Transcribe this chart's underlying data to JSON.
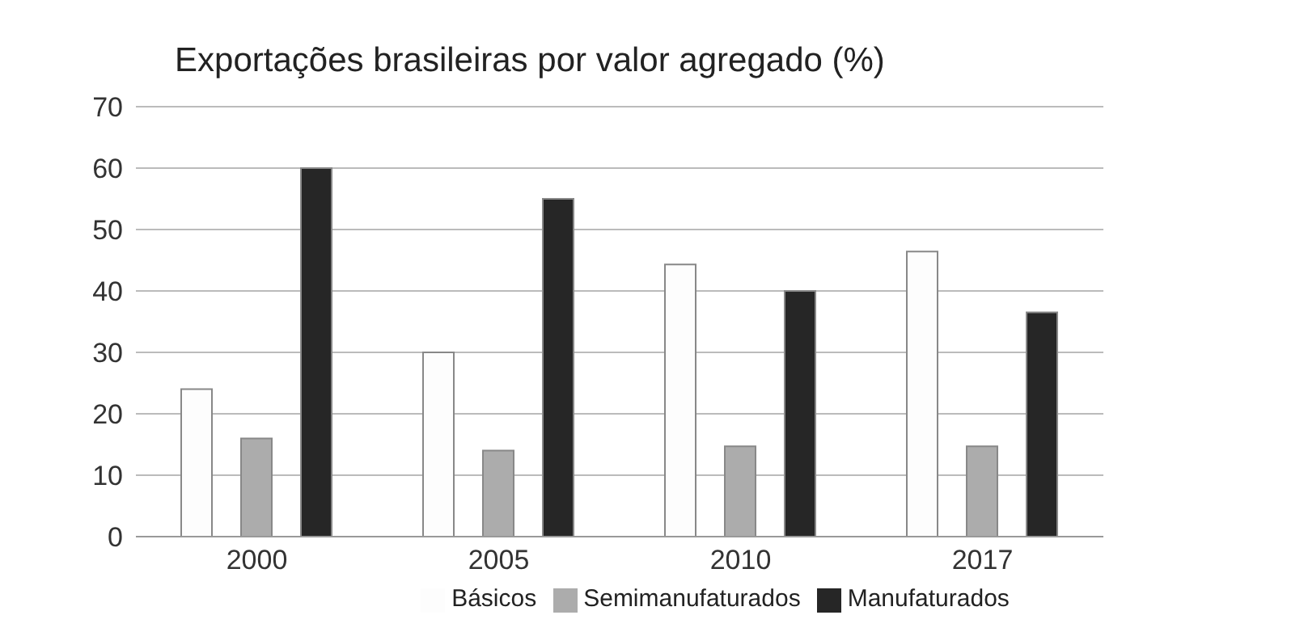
{
  "chart_data": {
    "type": "bar",
    "title": "Exportações brasileiras por valor agregado (%)",
    "categories": [
      "2000",
      "2005",
      "2010",
      "2017"
    ],
    "series": [
      {
        "name": "Básicos",
        "color": "#fdfdfd",
        "values": [
          24,
          30,
          44.3,
          46.4
        ]
      },
      {
        "name": "Semimanufaturados",
        "color": "#acacac",
        "values": [
          16,
          14,
          14.7,
          14.7
        ]
      },
      {
        "name": "Manufaturados",
        "color": "#262626",
        "values": [
          60,
          55,
          40,
          36.5
        ]
      }
    ],
    "ylim": [
      0,
      70
    ],
    "yticks": [
      0,
      10,
      20,
      30,
      40,
      50,
      60,
      70
    ],
    "grid": "y",
    "legend": "bottom"
  }
}
